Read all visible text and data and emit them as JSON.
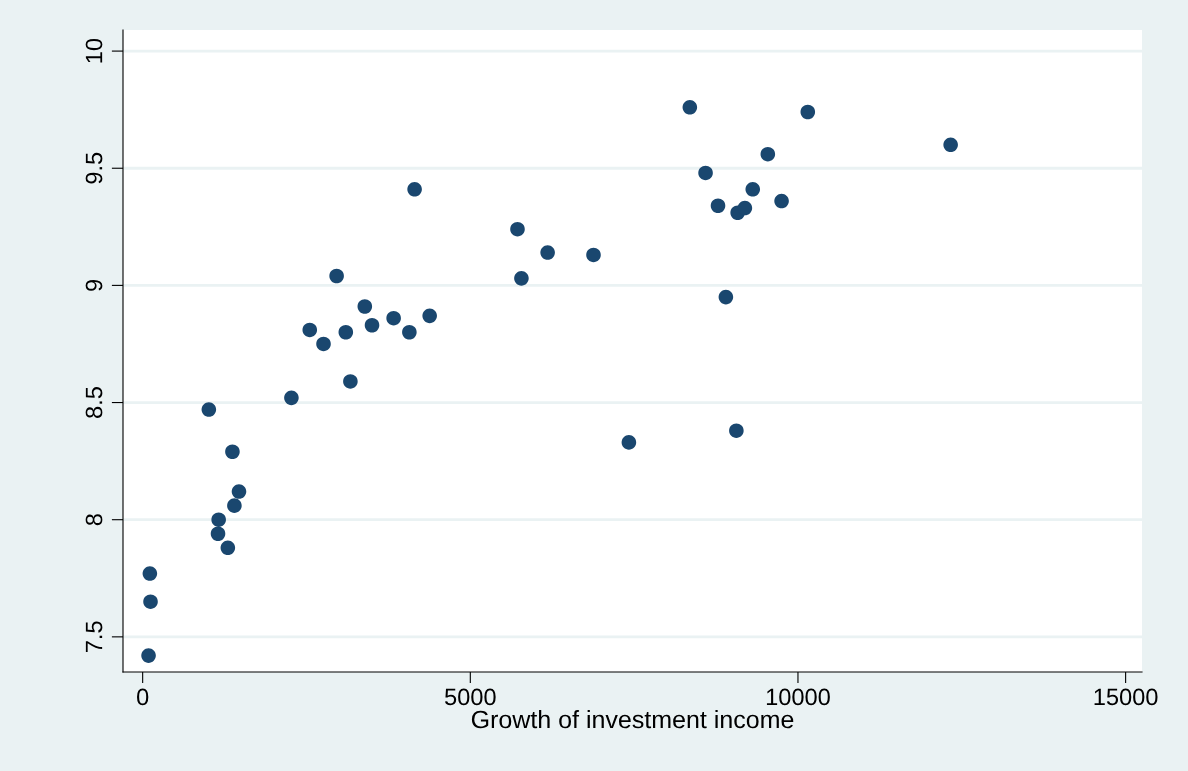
{
  "chart_data": {
    "type": "scatter",
    "xlabel": "Growth of investment income",
    "marker": "circle",
    "grid": "y",
    "xlim": [
      -300,
      15250
    ],
    "ylim": [
      7.35,
      10.09
    ],
    "xticks": [
      0,
      5000,
      10000,
      15000
    ],
    "yticks": [
      {
        "value": 7.5,
        "label": "7.5"
      },
      {
        "value": 8,
        "label": "8"
      },
      {
        "value": 8.5,
        "label": "8.5"
      },
      {
        "value": 9,
        "label": "9"
      },
      {
        "value": 9.5,
        "label": "9.5"
      },
      {
        "value": 10,
        "label": "10"
      }
    ],
    "series": [
      {
        "color": "#1a476f",
        "x": [
          110,
          120,
          90,
          1010,
          1160,
          1150,
          1300,
          1370,
          1400,
          1470,
          2270,
          2550,
          2760,
          2960,
          3100,
          3170,
          3390,
          3500,
          3830,
          4070,
          4150,
          4380,
          5720,
          5780,
          6180,
          6880,
          7420,
          8350,
          8590,
          8780,
          8900,
          9060,
          9080,
          9190,
          9310,
          9540,
          9750,
          10150,
          12330
        ],
        "values": [
          7.77,
          7.65,
          7.42,
          8.47,
          8.0,
          7.94,
          7.88,
          8.29,
          8.06,
          8.12,
          8.52,
          8.81,
          8.75,
          9.04,
          8.8,
          8.59,
          8.91,
          8.83,
          8.86,
          8.8,
          9.41,
          8.87,
          9.24,
          9.03,
          9.14,
          9.13,
          8.33,
          9.76,
          9.48,
          9.34,
          8.95,
          8.38,
          9.31,
          9.33,
          9.41,
          9.56,
          9.36,
          9.74,
          9.6
        ]
      }
    ]
  }
}
